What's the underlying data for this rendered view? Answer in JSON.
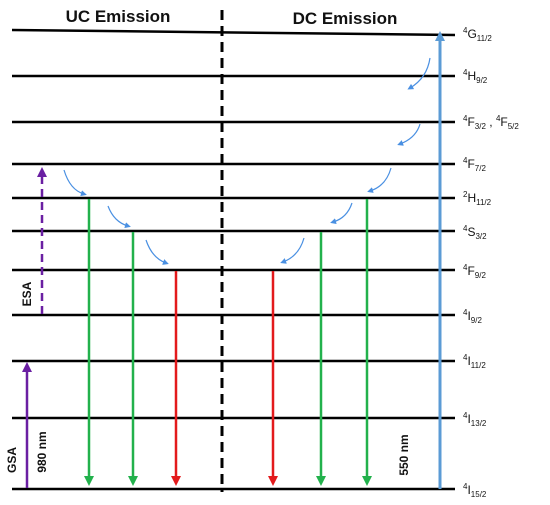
{
  "headers": {
    "uc": "UC Emission",
    "dc": "DC Emission"
  },
  "levels": [
    {
      "id": "4G11/2",
      "pre": "4",
      "main": "G",
      "sub": "11/2"
    },
    {
      "id": "4H9/2",
      "pre": "4",
      "main": "H",
      "sub": "9/2"
    },
    {
      "id": "4F3/2,4F5/2",
      "pre": "4",
      "main": "F",
      "sub": "3/2",
      "extra_pre": "4",
      "extra_main": "F",
      "extra_sub": "5/2"
    },
    {
      "id": "4F7/2",
      "pre": "4",
      "main": "F",
      "sub": "7/2"
    },
    {
      "id": "2H11/2",
      "pre": "2",
      "main": "H",
      "sub": "11/2"
    },
    {
      "id": "4S3/2",
      "pre": "4",
      "main": "S",
      "sub": "3/2"
    },
    {
      "id": "4F9/2",
      "pre": "4",
      "main": "F",
      "sub": "9/2"
    },
    {
      "id": "4I9/2",
      "pre": "4",
      "main": "I",
      "sub": "9/2"
    },
    {
      "id": "4I11/2",
      "pre": "4",
      "main": "I",
      "sub": "11/2"
    },
    {
      "id": "4I13/2",
      "pre": "4",
      "main": "I",
      "sub": "13/2"
    },
    {
      "id": "4I15/2",
      "pre": "4",
      "main": "I",
      "sub": "15/2"
    }
  ],
  "labels": {
    "esa": "ESA",
    "gsa": "GSA",
    "excitation_uc": "980 nm",
    "excitation_dc": "550 nm"
  },
  "colors": {
    "level_line": "#000000",
    "divider": "#000000",
    "gsa_arrow": "#6a1fa2",
    "esa_arrow": "#6a1fa2",
    "green_emission": "#22b14c",
    "red_emission": "#e31a1c",
    "dc_excitation": "#5b9bd5",
    "relaxation": "#4a90e2"
  },
  "transitions": [
    {
      "kind": "gsa",
      "from": "4I15/2",
      "to": "4I11/2",
      "style": "solid"
    },
    {
      "kind": "esa",
      "from": "4I11/2",
      "to": "4F7/2",
      "style": "dashed"
    },
    {
      "kind": "uc-green",
      "from": "2H11/2",
      "to": "4I15/2"
    },
    {
      "kind": "uc-green",
      "from": "4S3/2",
      "to": "4I15/2"
    },
    {
      "kind": "uc-red",
      "from": "4F9/2",
      "to": "4I15/2"
    },
    {
      "kind": "dc-excitation",
      "from": "4I15/2",
      "to": "4G11/2"
    },
    {
      "kind": "dc-green",
      "from": "2H11/2",
      "to": "4I15/2"
    },
    {
      "kind": "dc-green",
      "from": "4S3/2",
      "to": "4I15/2"
    },
    {
      "kind": "dc-red",
      "from": "4F9/2",
      "to": "4I15/2"
    }
  ]
}
